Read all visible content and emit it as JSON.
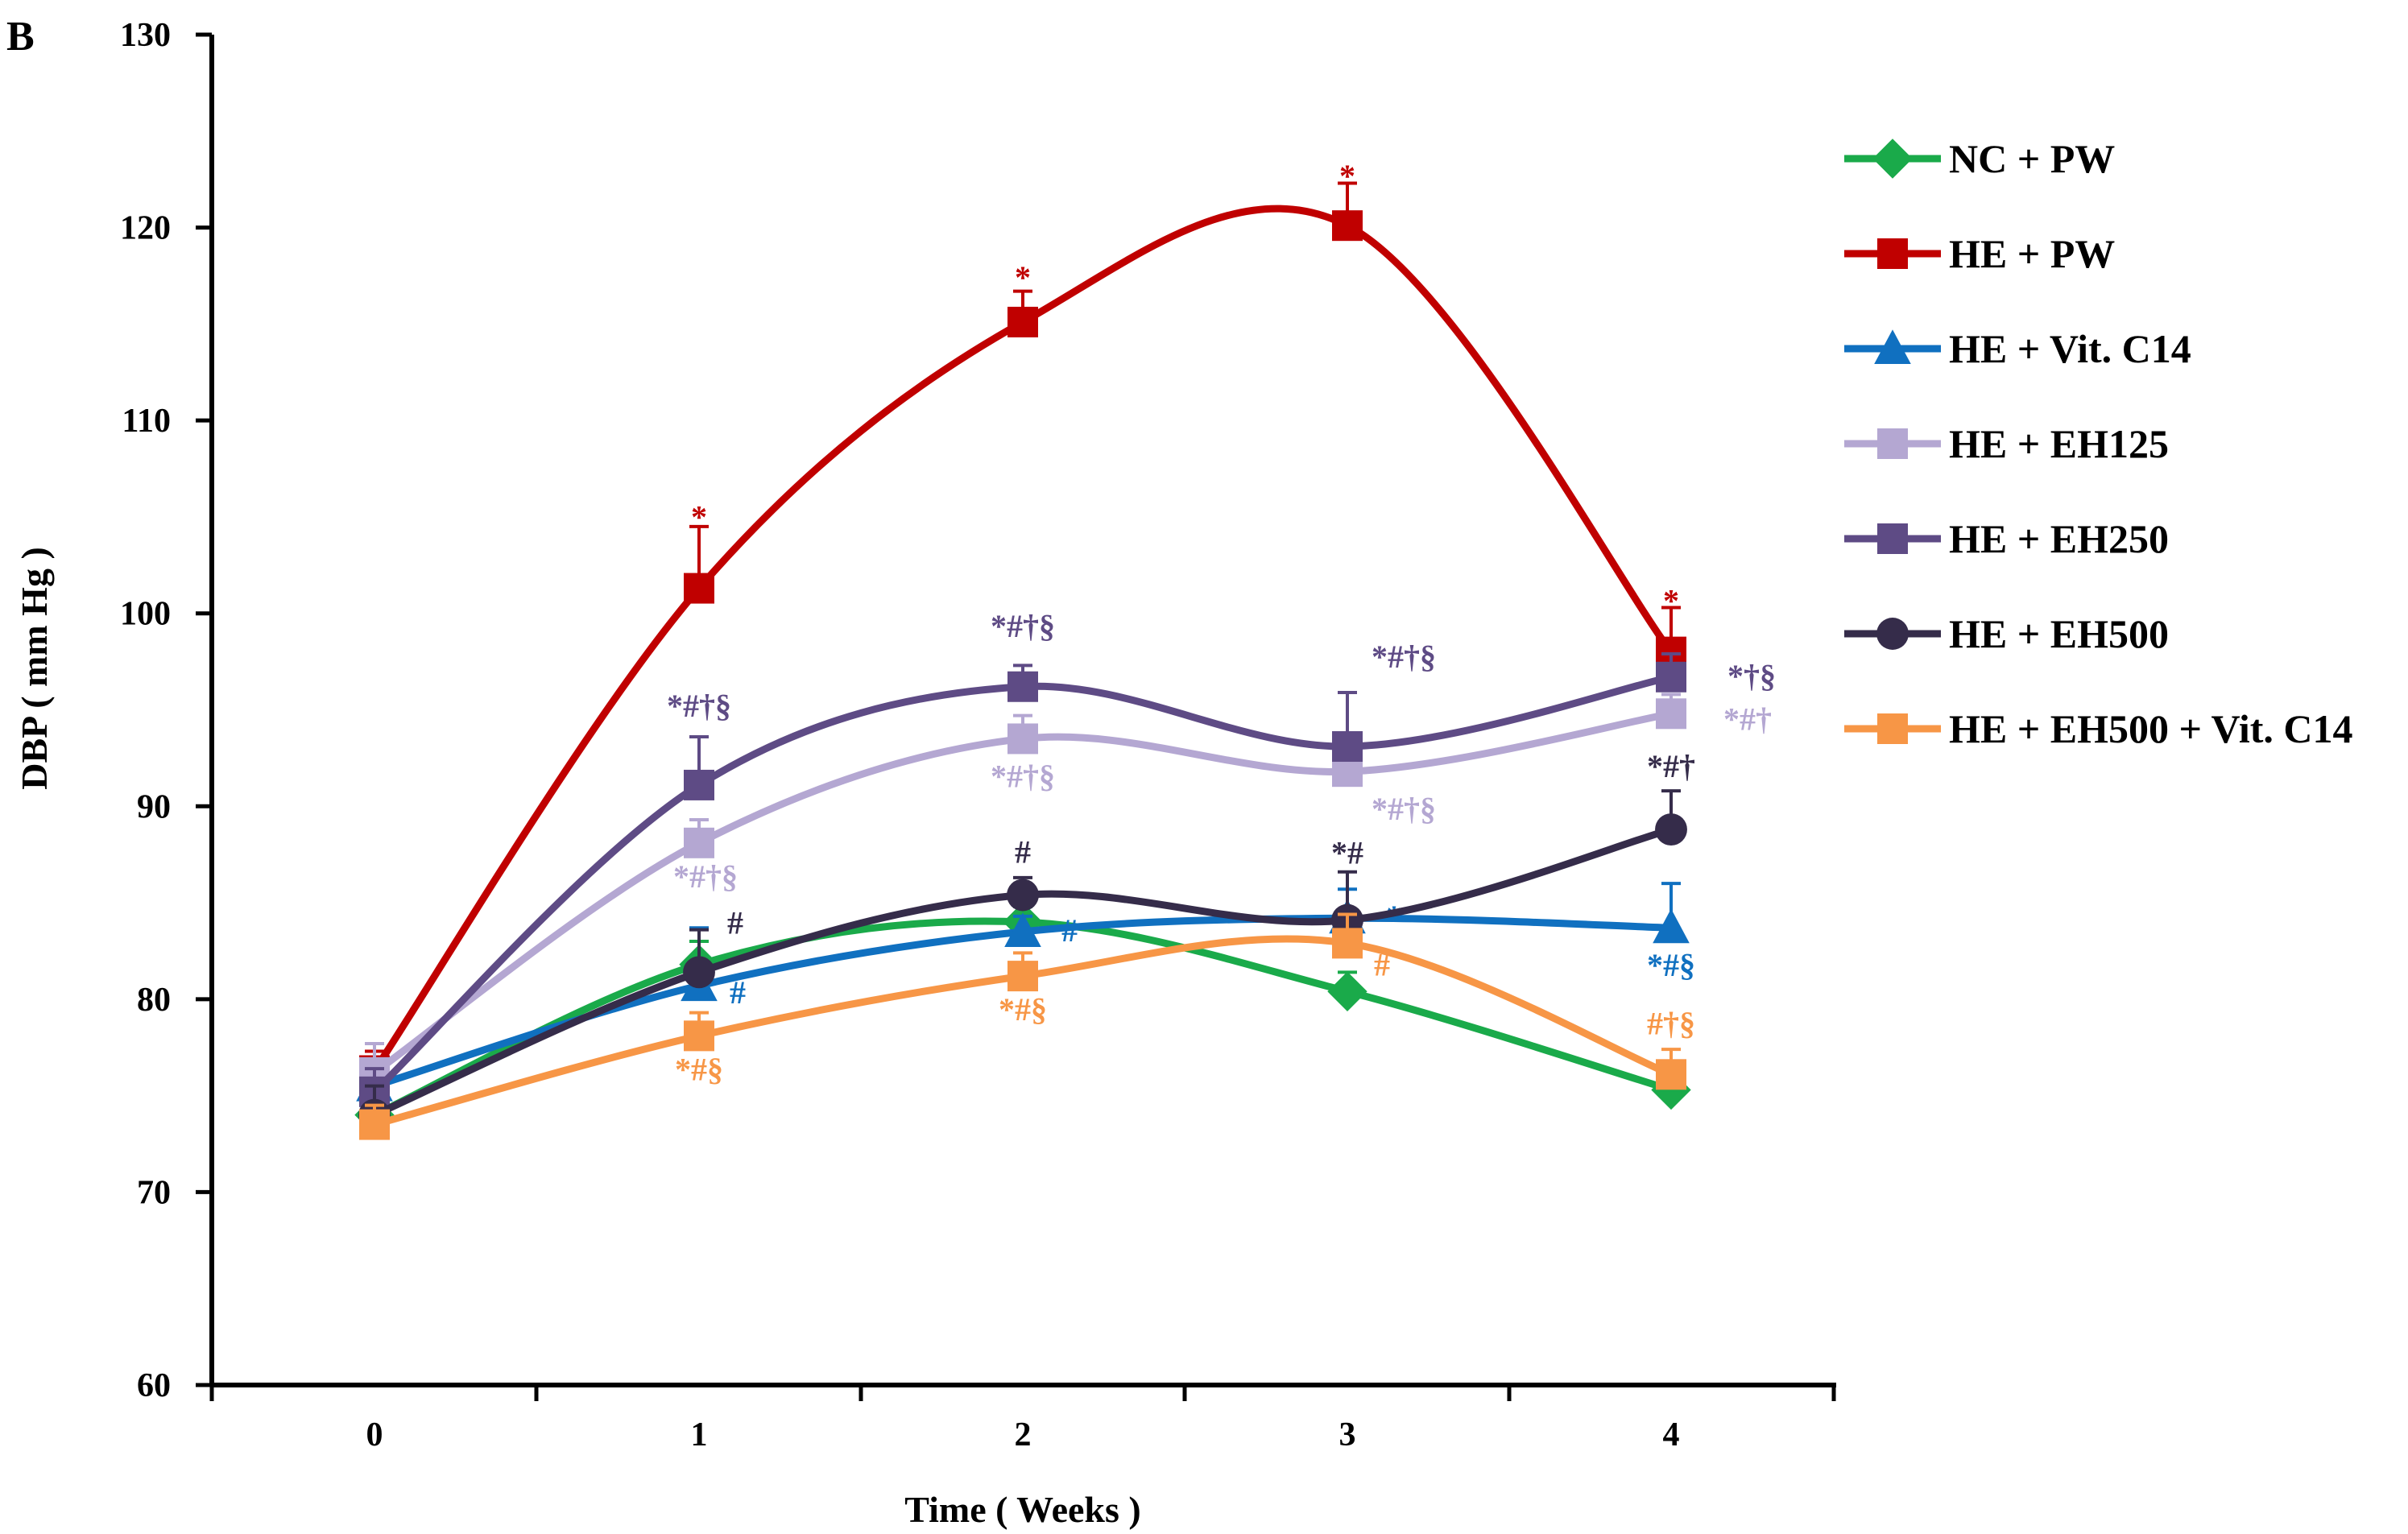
{
  "chart_data": {
    "type": "line",
    "panel_label": "B",
    "title": "",
    "xlabel": "Time ( Weeks )",
    "ylabel": "DBP ( mm Hg )",
    "x": [
      0,
      1,
      2,
      3,
      4
    ],
    "x_tick_labels": [
      "0",
      "1",
      "2",
      "3",
      "4"
    ],
    "ylim": [
      60,
      130
    ],
    "y_ticks": [
      60,
      70,
      80,
      90,
      100,
      110,
      120,
      130
    ],
    "y_tick_labels": [
      "60",
      "70",
      "80",
      "90",
      "100",
      "110",
      "120",
      "130"
    ],
    "grid": false,
    "legend_position": "right",
    "series": [
      {
        "name": "NC + PW",
        "color": "#1aaa4a",
        "marker": "diamond",
        "values": [
          74.0,
          81.8,
          84.0,
          80.4,
          75.3
        ],
        "errors": [
          0.8,
          1.2,
          0.8,
          1.0,
          0.9
        ],
        "annotations": [
          "",
          "",
          "",
          "",
          ""
        ]
      },
      {
        "name": "HE + PW",
        "color": "#c00000",
        "marker": "square",
        "values": [
          76.3,
          101.3,
          115.1,
          120.1,
          98.0
        ],
        "errors": [
          1.0,
          3.2,
          1.6,
          2.2,
          2.3
        ],
        "annotations": [
          "",
          "*",
          "*",
          "*",
          "*"
        ]
      },
      {
        "name": "HE + Vit. C14",
        "color": "#1070c0",
        "marker": "triangle",
        "values": [
          75.5,
          80.7,
          83.5,
          84.2,
          83.7
        ],
        "errors": [
          1.2,
          3.0,
          0.8,
          1.5,
          2.3
        ],
        "annotations": [
          "",
          "#",
          "#",
          "*",
          "*#§"
        ]
      },
      {
        "name": "HE + EH125",
        "color": "#b4a7d2",
        "marker": "square",
        "values": [
          76.2,
          88.1,
          93.5,
          91.8,
          94.8
        ],
        "errors": [
          1.5,
          1.2,
          1.2,
          1.0,
          1.0
        ],
        "annotations": [
          "",
          "*#†§",
          "*#†§",
          "*#†§",
          "*#†"
        ]
      },
      {
        "name": "HE + EH250",
        "color": "#5e4b85",
        "marker": "square",
        "values": [
          75.2,
          91.1,
          96.2,
          93.1,
          96.7
        ],
        "errors": [
          1.2,
          2.5,
          1.1,
          2.8,
          1.2
        ],
        "annotations": [
          "",
          "*#†§",
          "*#†§",
          "*#†§",
          "*†§"
        ]
      },
      {
        "name": "HE + EH500",
        "color": "#352c4a",
        "marker": "circle",
        "values": [
          74.0,
          81.4,
          85.4,
          84.1,
          88.8
        ],
        "errors": [
          1.5,
          2.2,
          0.9,
          2.5,
          2.0
        ],
        "annotations": [
          "",
          "#",
          "#",
          "*#",
          "*#†"
        ]
      },
      {
        "name": "HE + EH500 + Vit. C14",
        "color": "#f79646",
        "marker": "square",
        "values": [
          73.5,
          78.1,
          81.2,
          82.9,
          76.1
        ],
        "errors": [
          1.0,
          1.2,
          1.2,
          1.5,
          1.3
        ],
        "annotations": [
          "",
          "*#§",
          "*#§",
          "#",
          "#†§"
        ]
      }
    ]
  }
}
